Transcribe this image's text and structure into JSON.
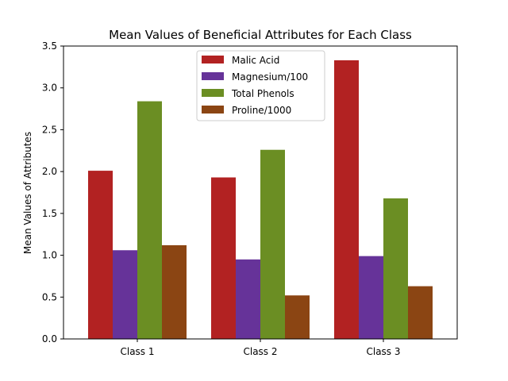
{
  "chart_data": {
    "type": "bar",
    "title": "Mean Values of Beneficial Attributes for Each Class",
    "xlabel": "",
    "ylabel": "Mean Values of Attributes",
    "categories": [
      "Class 1",
      "Class 2",
      "Class 3"
    ],
    "ylim": [
      0,
      3.5
    ],
    "yticks": [
      "0.0",
      "0.5",
      "1.0",
      "1.5",
      "2.0",
      "2.5",
      "3.0",
      "3.5"
    ],
    "grid": false,
    "legend_position": "top-center",
    "series": [
      {
        "name": "Malic Acid",
        "color": "#b22222",
        "values": [
          2.01,
          1.93,
          3.33
        ]
      },
      {
        "name": "Magnesium/100",
        "color": "#663399",
        "values": [
          1.06,
          0.95,
          0.99
        ]
      },
      {
        "name": "Total Phenols",
        "color": "#6b8e23",
        "values": [
          2.84,
          2.26,
          1.68
        ]
      },
      {
        "name": "Proline/1000",
        "color": "#8b4513",
        "values": [
          1.12,
          0.52,
          0.63
        ]
      }
    ]
  }
}
